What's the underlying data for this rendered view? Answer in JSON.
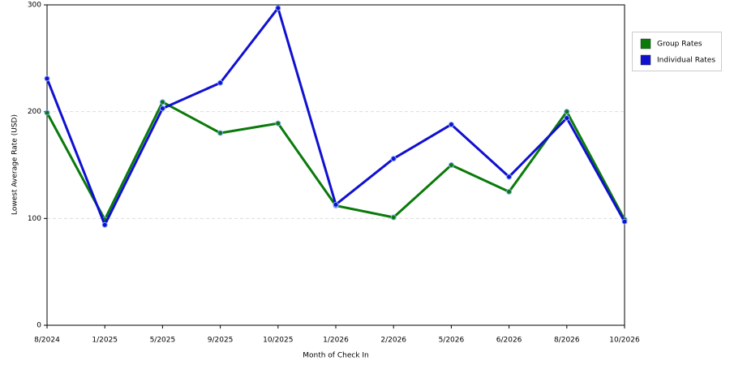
{
  "chart_data": {
    "type": "line",
    "x_label": "Month of Check In",
    "y_label": "Lowest Average Rate (USD)",
    "categories": [
      "8/2024",
      "1/2025",
      "5/2025",
      "9/2025",
      "10/2025",
      "1/2026",
      "2/2026",
      "5/2026",
      "6/2026",
      "8/2026",
      "10/2026"
    ],
    "series": [
      {
        "name": "Group Rates",
        "color": "#0a7a0a",
        "values": [
          199,
          99,
          209,
          180,
          189,
          112,
          101,
          150,
          125,
          200,
          99
        ]
      },
      {
        "name": "Individual Rates",
        "color": "#1010d0",
        "values": [
          231,
          94,
          203,
          227,
          297,
          113,
          156,
          188,
          139,
          194,
          97
        ]
      }
    ],
    "ylim": [
      0,
      300
    ],
    "yticks": [
      0,
      100,
      200,
      300
    ],
    "grid": true,
    "legend": "right"
  }
}
